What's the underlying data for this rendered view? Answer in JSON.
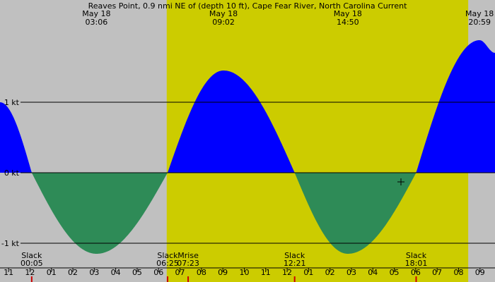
{
  "title": "Reaves Point, 0.9 nmi NE of (depth 10 ft), Cape Fear River, North Carolina Current",
  "chart_data": {
    "type": "area",
    "title": "Reaves Point, 0.9 nmi NE of (depth 10 ft), Cape Fear River, North Carolina Current",
    "xlabel": "",
    "ylabel": "",
    "x_unit": "hours",
    "xlim": [
      -1.4,
      21.7
    ],
    "ylim": [
      -1.55,
      2.45
    ],
    "y_ticks": [
      {
        "value": 1,
        "label": "1 kt"
      },
      {
        "value": 0,
        "label": "0 kt"
      },
      {
        "value": -1,
        "label": "-1 kt"
      }
    ],
    "x_ticks": [
      "11",
      "12",
      "01",
      "02",
      "03",
      "04",
      "05",
      "06",
      "07",
      "08",
      "09",
      "10",
      "11",
      "12",
      "01",
      "02",
      "03",
      "04",
      "05",
      "06",
      "07",
      "08",
      "09"
    ],
    "daylight": {
      "start": 6.38,
      "end": 20.45
    },
    "peaks": [
      {
        "day": "May 18",
        "time": "03:06",
        "hour": 3.1,
        "speed": -1.15
      },
      {
        "day": "May 18",
        "time": "09:02",
        "hour": 9.03,
        "speed": 1.45
      },
      {
        "day": "May 18",
        "time": "14:50",
        "hour": 14.83,
        "speed": -1.15
      },
      {
        "day": "May 18",
        "time": "20:59",
        "hour": 20.98,
        "speed": 1.88
      }
    ],
    "slacks": [
      {
        "label": "Slack",
        "time": "00:05",
        "hour": 0.08
      },
      {
        "label": "Slack",
        "time": "06:25",
        "hour": 6.42
      },
      {
        "label": "Slack",
        "time": "12:21",
        "hour": 12.35
      },
      {
        "label": "Slack",
        "time": "18:01",
        "hour": 18.02
      }
    ],
    "events": [
      {
        "label": "Mrise",
        "time": "07:23",
        "hour": 7.38
      }
    ],
    "series": [
      {
        "x": [
          -1.4,
          0.08,
          3.1,
          6.42,
          9.03,
          12.35,
          14.83,
          18.02,
          20.98,
          21.7
        ],
        "y": [
          1.0,
          0,
          -1.15,
          0,
          1.45,
          0,
          -1.15,
          0,
          1.88,
          1.7
        ]
      }
    ],
    "flood_color": "#0000ff",
    "ebb_color": "#2e8b57",
    "day_color": "#cccc00",
    "night_color": "#c0c0c0",
    "legend": "none"
  }
}
